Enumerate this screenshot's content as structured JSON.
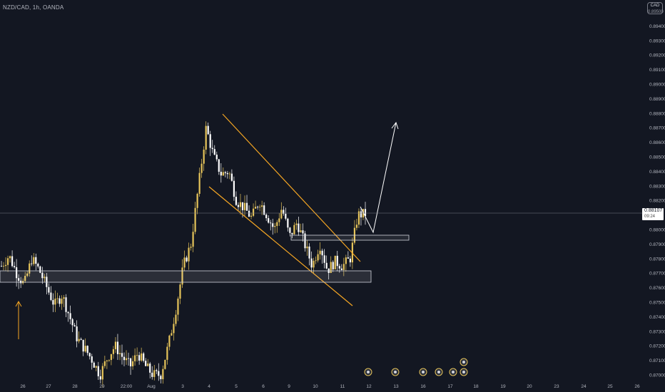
{
  "header": {
    "symbol": "NZD/CAD, 1h, OANDA",
    "currency_top": "CAD",
    "currency_bottom": "0.89500"
  },
  "price_tag": {
    "price": "0.88107",
    "countdown": "09:24"
  },
  "colors": {
    "background": "#131722",
    "bull_candle": "#e6c45a",
    "bear_candle": "#ffffff",
    "channel": "#f5a623",
    "projection": "#ffffff",
    "axis_text": "#b2b5be",
    "price_line": "#787b86"
  },
  "chart_data": {
    "type": "candlestick",
    "symbol": "NZD/CAD",
    "timeframe": "1h",
    "broker": "OANDA",
    "x_ticks": [
      "26",
      "27",
      "28",
      "29",
      "22:00",
      "Aug",
      "3",
      "4",
      "5",
      "6",
      "9",
      "10",
      "11",
      "12",
      "13",
      "16",
      "17",
      "18",
      "19",
      "20",
      "23",
      "24",
      "25",
      "26"
    ],
    "y_ticks": [
      "0.89400",
      "0.89300",
      "0.89200",
      "0.89100",
      "0.89000",
      "0.88900",
      "0.88800",
      "0.88700",
      "0.88600",
      "0.88500",
      "0.88400",
      "0.88300",
      "0.88200",
      "0.88000",
      "0.87900",
      "0.87800",
      "0.87700",
      "0.87600",
      "0.87500",
      "0.87400",
      "0.87300",
      "0.87200",
      "0.87100",
      "0.87000"
    ],
    "ylim": [
      0.8698,
      0.8956
    ],
    "last_price": 0.88107,
    "price_path": [
      {
        "t": 0,
        "p": 0.8775
      },
      {
        "t": 1,
        "p": 0.8782
      },
      {
        "t": 2,
        "p": 0.877
      },
      {
        "t": 3,
        "p": 0.8762
      },
      {
        "t": 4,
        "p": 0.878
      },
      {
        "t": 5,
        "p": 0.8772
      },
      {
        "t": 6,
        "p": 0.876
      },
      {
        "t": 7,
        "p": 0.8748
      },
      {
        "t": 8,
        "p": 0.8755
      },
      {
        "t": 9,
        "p": 0.874
      },
      {
        "t": 10,
        "p": 0.8725
      },
      {
        "t": 11,
        "p": 0.8718
      },
      {
        "t": 12,
        "p": 0.871
      },
      {
        "t": 13,
        "p": 0.87
      },
      {
        "t": 14,
        "p": 0.8712
      },
      {
        "t": 15,
        "p": 0.872
      },
      {
        "t": 16,
        "p": 0.8712
      },
      {
        "t": 17,
        "p": 0.8706
      },
      {
        "t": 18,
        "p": 0.8715
      },
      {
        "t": 19,
        "p": 0.8706
      },
      {
        "t": 20,
        "p": 0.87
      },
      {
        "t": 21,
        "p": 0.87
      },
      {
        "t": 22,
        "p": 0.872
      },
      {
        "t": 23,
        "p": 0.8745
      },
      {
        "t": 24,
        "p": 0.8775
      },
      {
        "t": 25,
        "p": 0.879
      },
      {
        "t": 26,
        "p": 0.883
      },
      {
        "t": 27,
        "p": 0.887
      },
      {
        "t": 28,
        "p": 0.885
      },
      {
        "t": 29,
        "p": 0.8838
      },
      {
        "t": 30,
        "p": 0.884
      },
      {
        "t": 31,
        "p": 0.882
      },
      {
        "t": 32,
        "p": 0.8815
      },
      {
        "t": 33,
        "p": 0.8808
      },
      {
        "t": 34,
        "p": 0.882
      },
      {
        "t": 35,
        "p": 0.881
      },
      {
        "t": 36,
        "p": 0.88
      },
      {
        "t": 37,
        "p": 0.8815
      },
      {
        "t": 38,
        "p": 0.8795
      },
      {
        "t": 39,
        "p": 0.8805
      },
      {
        "t": 40,
        "p": 0.879
      },
      {
        "t": 41,
        "p": 0.8775
      },
      {
        "t": 42,
        "p": 0.879
      },
      {
        "t": 43,
        "p": 0.8772
      },
      {
        "t": 44,
        "p": 0.8778
      },
      {
        "t": 45,
        "p": 0.8775
      },
      {
        "t": 46,
        "p": 0.878
      },
      {
        "t": 47,
        "p": 0.881
      },
      {
        "t": 48,
        "p": 0.88107
      }
    ],
    "annotations": [
      {
        "type": "descending-channel",
        "upper": [
          [
            0.8878,
            0.8777
          ]
        ],
        "lower": [
          [
            0.8832,
            0.8742
          ]
        ]
      },
      {
        "type": "support-zone",
        "top": 0.8771,
        "bottom": 0.8764
      },
      {
        "type": "retest-zone",
        "top": 0.8799,
        "bottom": 0.8795
      },
      {
        "type": "projection-arrow",
        "from": 0.881,
        "via": 0.8797,
        "to": 0.887
      },
      {
        "type": "up-arrow",
        "at": 0.8745
      }
    ]
  }
}
